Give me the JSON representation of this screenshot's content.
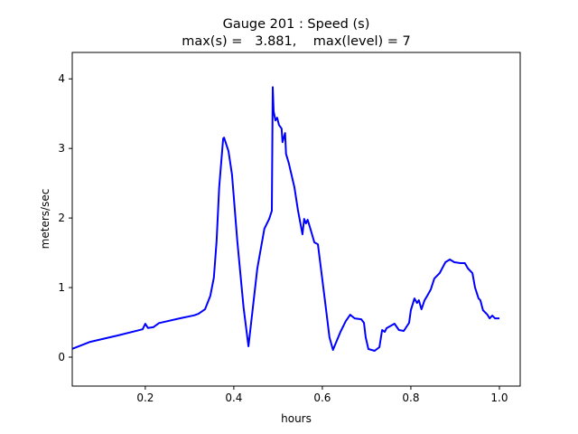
{
  "chart_data": {
    "type": "line",
    "title": "Gauge 201 : Speed (s)",
    "subtitle": "max(s) =   3.881,    max(level) = 7",
    "xlabel": "hours",
    "ylabel": "meters/sec",
    "xlim": [
      0.035,
      1.047
    ],
    "ylim": [
      -0.416,
      4.38
    ],
    "xticks": [
      0.2,
      0.4,
      0.6,
      0.8,
      1.0
    ],
    "xtick_labels": [
      "0.2",
      "0.4",
      "0.6",
      "0.8",
      "1.0"
    ],
    "yticks": [
      0,
      1,
      2,
      3,
      4
    ],
    "ytick_labels": [
      "0",
      "1",
      "2",
      "3",
      "4"
    ],
    "grid": false,
    "series": [
      {
        "name": "speed",
        "color": "#0000ff",
        "x": [
          0.035,
          0.0755,
          0.137,
          0.194,
          0.2,
          0.206,
          0.218,
          0.231,
          0.28,
          0.31,
          0.32,
          0.335,
          0.347,
          0.355,
          0.361,
          0.367,
          0.376,
          0.378,
          0.388,
          0.396,
          0.408,
          0.422,
          0.433,
          0.443,
          0.453,
          0.469,
          0.48,
          0.486,
          0.488,
          0.49,
          0.494,
          0.498,
          0.502,
          0.508,
          0.51,
          0.516,
          0.518,
          0.524,
          0.537,
          0.545,
          0.555,
          0.559,
          0.563,
          0.567,
          0.573,
          0.582,
          0.59,
          0.606,
          0.616,
          0.624,
          0.641,
          0.653,
          0.663,
          0.673,
          0.688,
          0.694,
          0.698,
          0.704,
          0.718,
          0.729,
          0.735,
          0.741,
          0.745,
          0.763,
          0.773,
          0.784,
          0.796,
          0.8,
          0.808,
          0.814,
          0.818,
          0.824,
          0.831,
          0.837,
          0.845,
          0.853,
          0.865,
          0.878,
          0.888,
          0.898,
          0.912,
          0.922,
          0.929,
          0.939,
          0.945,
          0.953,
          0.957,
          0.963,
          0.973,
          0.978,
          0.984,
          0.99,
          1.0
        ],
        "y": [
          0.12,
          0.22,
          0.31,
          0.4,
          0.48,
          0.42,
          0.43,
          0.49,
          0.56,
          0.6,
          0.623,
          0.688,
          0.883,
          1.143,
          1.662,
          2.442,
          3.143,
          3.156,
          2.961,
          2.623,
          1.662,
          0.714,
          0.156,
          0.714,
          1.273,
          1.844,
          1.987,
          2.104,
          3.881,
          3.532,
          3.403,
          3.442,
          3.338,
          3.286,
          3.091,
          3.221,
          2.922,
          2.792,
          2.442,
          2.104,
          1.766,
          1.987,
          1.922,
          1.974,
          1.844,
          1.649,
          1.623,
          0.805,
          0.286,
          0.104,
          0.364,
          0.519,
          0.61,
          0.558,
          0.545,
          0.494,
          0.286,
          0.117,
          0.091,
          0.143,
          0.39,
          0.364,
          0.416,
          0.481,
          0.39,
          0.377,
          0.494,
          0.675,
          0.844,
          0.779,
          0.818,
          0.688,
          0.818,
          0.883,
          0.974,
          1.13,
          1.208,
          1.364,
          1.403,
          1.364,
          1.351,
          1.351,
          1.273,
          1.208,
          1.0,
          0.844,
          0.818,
          0.675,
          0.61,
          0.558,
          0.597,
          0.558,
          0.558
        ]
      }
    ]
  }
}
